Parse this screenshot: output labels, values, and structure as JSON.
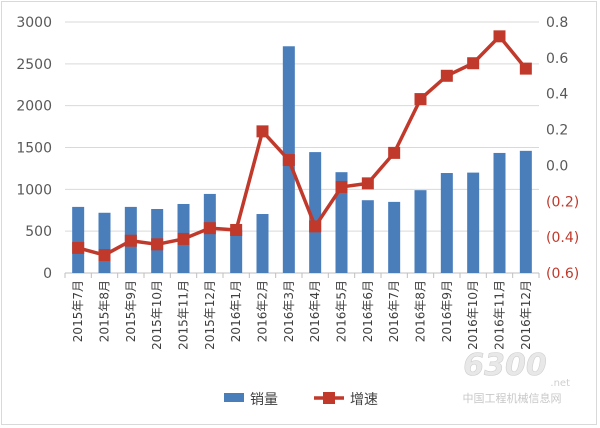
{
  "chart_data": {
    "type": "bar+line",
    "categories": [
      "2015年7月",
      "2015年8月",
      "2015年9月",
      "2015年10月",
      "2015年11月",
      "2015年12月",
      "2016年1月",
      "2016年2月",
      "2016年3月",
      "2016年4月",
      "2016年5月",
      "2016年6月",
      "2016年7月",
      "2016年8月",
      "2016年9月",
      "2016年10月",
      "2016年11月",
      "2016年12月"
    ],
    "series": [
      {
        "name": "销量",
        "type": "bar",
        "axis": "left",
        "color": "#4a7ebb",
        "values": [
          790,
          720,
          790,
          765,
          825,
          945,
          520,
          705,
          2710,
          1445,
          1205,
          870,
          850,
          990,
          1195,
          1200,
          1435,
          1460
        ]
      },
      {
        "name": "增速",
        "type": "line",
        "axis": "right",
        "color": "#c0392b",
        "marker": "square",
        "values": [
          -0.46,
          -0.5,
          -0.42,
          -0.44,
          -0.41,
          -0.35,
          -0.36,
          0.19,
          0.03,
          -0.34,
          -0.12,
          -0.1,
          0.07,
          0.37,
          0.5,
          0.57,
          0.72,
          0.54
        ]
      }
    ],
    "y_left": {
      "range": [
        0,
        3000
      ],
      "ticks": [
        "0",
        "500",
        "1000",
        "1500",
        "2000",
        "2500",
        "3000"
      ]
    },
    "y_right": {
      "range": [
        -0.6,
        0.8
      ],
      "ticks": [
        "(0.6)",
        "(0.4)",
        "(0.2)",
        "0.0",
        "0.2",
        "0.4",
        "0.6",
        "0.8"
      ],
      "negative_color": "#c0392b"
    },
    "grid": true,
    "legend": "bottom",
    "watermark": "6300.net 中国工程机械信息网"
  }
}
